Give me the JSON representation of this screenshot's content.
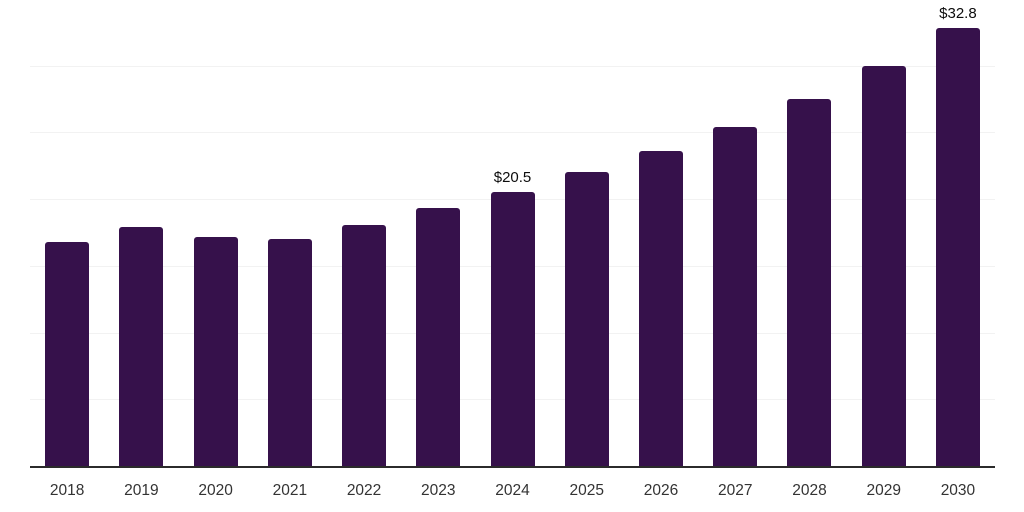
{
  "chart_data": {
    "type": "bar",
    "categories": [
      "2018",
      "2019",
      "2020",
      "2021",
      "2022",
      "2023",
      "2024",
      "2025",
      "2026",
      "2027",
      "2028",
      "2029",
      "2030"
    ],
    "values": [
      16.8,
      17.9,
      17.2,
      17.0,
      18.1,
      19.3,
      20.5,
      22.0,
      23.6,
      25.4,
      27.5,
      30.0,
      32.8
    ],
    "bar_labels": [
      "",
      "",
      "",
      "",
      "",
      "",
      "$20.5",
      "",
      "",
      "",
      "",
      "",
      "$32.8"
    ],
    "title": "",
    "xlabel": "",
    "ylabel": "",
    "ylim": [
      0,
      35
    ],
    "gridline_step": 5,
    "grid": true,
    "legend_position": "none",
    "y_tick_labels_visible": false
  },
  "colors": {
    "bar": "#36114B",
    "axis_line": "#2b2b2b",
    "gridline": "#f2f2f2",
    "x_tick_label": "#333333",
    "value_label": "#0d0d0d",
    "background": "#ffffff"
  }
}
